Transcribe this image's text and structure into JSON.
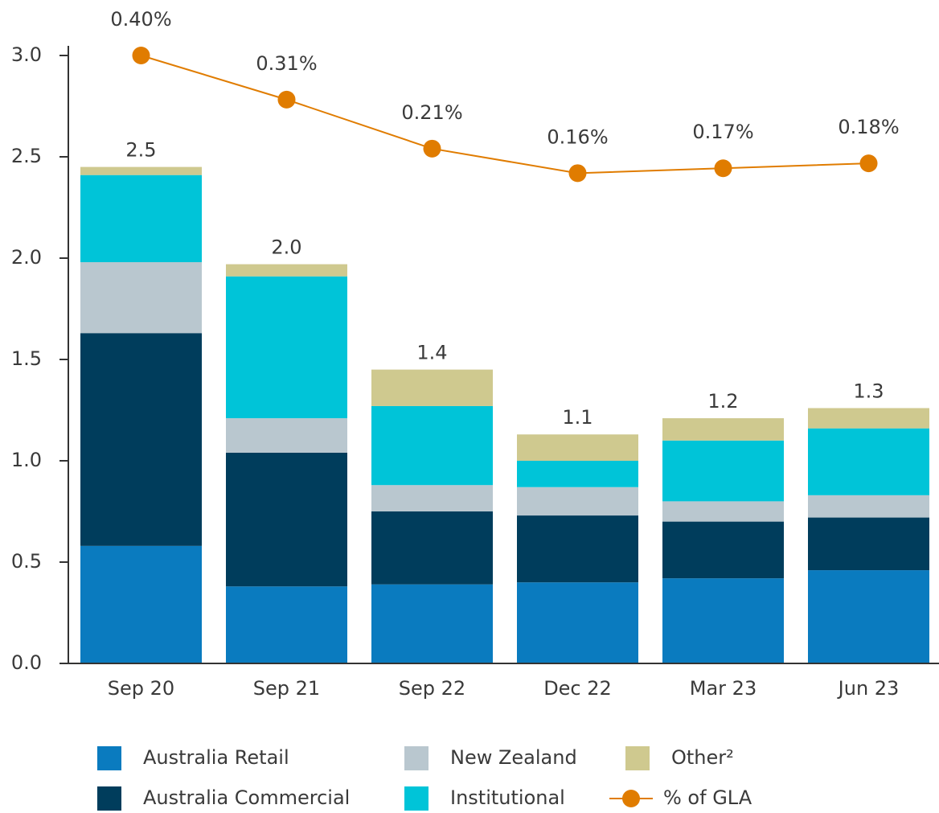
{
  "chart_data": {
    "type": "bar",
    "stacked": true,
    "categories": [
      "Sep 20",
      "Sep 21",
      "Sep 22",
      "Dec 22",
      "Mar 23",
      "Jun 23"
    ],
    "series": [
      {
        "name": "Australia Retail",
        "color": "#0a7bbf",
        "values": [
          0.58,
          0.38,
          0.39,
          0.4,
          0.42,
          0.46
        ]
      },
      {
        "name": "Australia Commercial",
        "color": "#003d5c",
        "values": [
          1.05,
          0.66,
          0.36,
          0.33,
          0.28,
          0.26
        ]
      },
      {
        "name": "New Zealand",
        "color": "#b9c7cf",
        "values": [
          0.35,
          0.17,
          0.13,
          0.14,
          0.1,
          0.11
        ]
      },
      {
        "name": "Institutional",
        "color": "#00c4d8",
        "values": [
          0.43,
          0.7,
          0.39,
          0.13,
          0.3,
          0.33
        ]
      },
      {
        "name": "Other²",
        "color": "#cfc98f",
        "values": [
          0.04,
          0.06,
          0.18,
          0.13,
          0.11,
          0.1
        ]
      },
      {
        "name": "% of GLA",
        "type": "line",
        "axis": "y2",
        "color": "#e07c00",
        "values": [
          0.4,
          0.31,
          0.21,
          0.16,
          0.17,
          0.18
        ],
        "value_labels": [
          "0.40%",
          "0.31%",
          "0.21%",
          "0.16%",
          "0.17%",
          "0.18%"
        ]
      }
    ],
    "totals": {
      "values": [
        2.5,
        2.0,
        1.4,
        1.1,
        1.2,
        1.3
      ],
      "value_labels": [
        "2.5",
        "2.0",
        "1.4",
        "1.1",
        "1.2",
        "1.3"
      ]
    },
    "ylim": [
      0,
      3
    ],
    "yticks": [
      {
        "value": 0,
        "label": "0.0"
      },
      0.5,
      {
        "value": 1,
        "label": "1.0"
      },
      1.5,
      {
        "value": 2,
        "label": "2.0"
      },
      2.5,
      {
        "value": 3,
        "label": "3.0"
      }
    ],
    "y2lim": [
      -0.84,
      0.4
    ],
    "legend": "bottom"
  }
}
